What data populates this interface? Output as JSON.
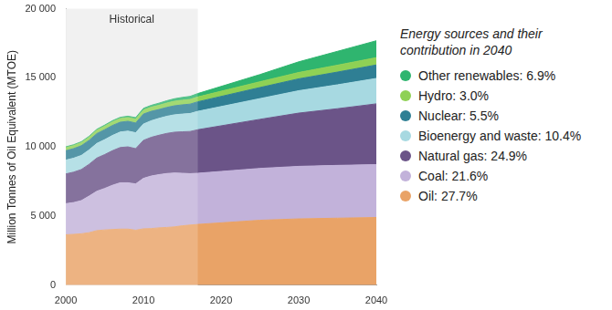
{
  "chart_data": {
    "type": "area",
    "stacked": true,
    "y_label": "Million Tonnes of Oil Equivalent (MTOE)",
    "legend": "right",
    "legend_title": "Energy sources and their contribution in 2040",
    "grid": false,
    "annotations": [
      {
        "text": "Historical",
        "x_range": [
          2000,
          2017
        ]
      }
    ],
    "x": [
      2000,
      2001,
      2002,
      2003,
      2004,
      2005,
      2006,
      2007,
      2008,
      2009,
      2010,
      2011,
      2012,
      2013,
      2014,
      2015,
      2016,
      2017,
      2025,
      2030,
      2035,
      2040
    ],
    "xlim": [
      2000,
      2040
    ],
    "xticks": [
      2000,
      2010,
      2020,
      2030,
      2040
    ],
    "ylim": [
      0,
      20000
    ],
    "yticks": [
      0,
      {
        "value": 5000,
        "label": "5 000"
      },
      {
        "value": 10000,
        "label": "10 000"
      },
      {
        "value": 15000,
        "label": "15 000"
      },
      {
        "value": 20000,
        "label": "20 000"
      }
    ],
    "series": [
      {
        "name": "Other renewables: 6.9%",
        "color": "#2fb56f",
        "values": [
          60,
          62,
          65,
          70,
          75,
          80,
          85,
          90,
          100,
          110,
          120,
          135,
          150,
          165,
          180,
          200,
          220,
          245,
          520,
          770,
          1000,
          1220
        ]
      },
      {
        "name": "Hydro: 3.0%",
        "color": "#8fd155",
        "values": [
          225,
          220,
          225,
          225,
          240,
          250,
          260,
          265,
          270,
          280,
          295,
          300,
          310,
          320,
          330,
          335,
          340,
          350,
          420,
          460,
          500,
          530
        ]
      },
      {
        "name": "Nuclear: 5.5%",
        "color": "#2f7f94",
        "values": [
          675,
          690,
          700,
          690,
          710,
          720,
          725,
          710,
          710,
          705,
          720,
          680,
          640,
          640,
          650,
          670,
          680,
          690,
          800,
          860,
          920,
          975
        ]
      },
      {
        "name": "Bioenergy and waste: 10.4%",
        "color": "#a7d9e1",
        "values": [
          1000,
          1010,
          1020,
          1040,
          1060,
          1080,
          1100,
          1120,
          1140,
          1150,
          1180,
          1200,
          1220,
          1240,
          1260,
          1280,
          1300,
          1330,
          1500,
          1620,
          1730,
          1840
        ]
      },
      {
        "name": "Natural gas: 24.9%",
        "color": "#6b5488",
        "values": [
          2150,
          2200,
          2250,
          2300,
          2400,
          2450,
          2500,
          2550,
          2600,
          2550,
          2750,
          2800,
          2850,
          2900,
          2950,
          3000,
          3050,
          3150,
          3550,
          3850,
          4100,
          4400
        ]
      },
      {
        "name": "Coal: 21.6%",
        "color": "#c2b2da",
        "values": [
          2250,
          2300,
          2400,
          2650,
          2850,
          3000,
          3200,
          3350,
          3350,
          3350,
          3650,
          3800,
          3850,
          3900,
          3900,
          3800,
          3720,
          3700,
          3750,
          3800,
          3820,
          3820
        ]
      },
      {
        "name": "Oil: 27.7%",
        "color": "#e9a367",
        "values": [
          3650,
          3680,
          3720,
          3800,
          3950,
          4000,
          4030,
          4060,
          4060,
          3980,
          4080,
          4100,
          4150,
          4180,
          4220,
          4300,
          4350,
          4400,
          4700,
          4800,
          4850,
          4900
        ]
      }
    ]
  }
}
